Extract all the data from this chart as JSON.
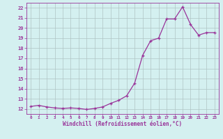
{
  "x": [
    0,
    1,
    2,
    3,
    4,
    5,
    6,
    7,
    8,
    9,
    10,
    11,
    12,
    13,
    14,
    15,
    16,
    17,
    18,
    19,
    20,
    21,
    22,
    23
  ],
  "y": [
    12.25,
    12.35,
    12.2,
    12.1,
    12.05,
    12.1,
    12.05,
    11.95,
    12.05,
    12.2,
    12.55,
    12.85,
    13.3,
    14.55,
    17.3,
    18.75,
    19.0,
    20.9,
    20.9,
    22.1,
    20.35,
    19.3,
    19.55,
    19.55
  ],
  "line_color": "#993399",
  "marker": "+",
  "bg_color": "#d4f0f0",
  "grid_color": "#b0c4c4",
  "xlabel": "Windchill (Refroidissement éolien,°C)",
  "ylabel_ticks": [
    12,
    13,
    14,
    15,
    16,
    17,
    18,
    19,
    20,
    21,
    22
  ],
  "ylim": [
    11.5,
    22.5
  ],
  "xlim": [
    -0.5,
    23.5
  ],
  "figsize": [
    3.2,
    2.0
  ],
  "dpi": 100
}
